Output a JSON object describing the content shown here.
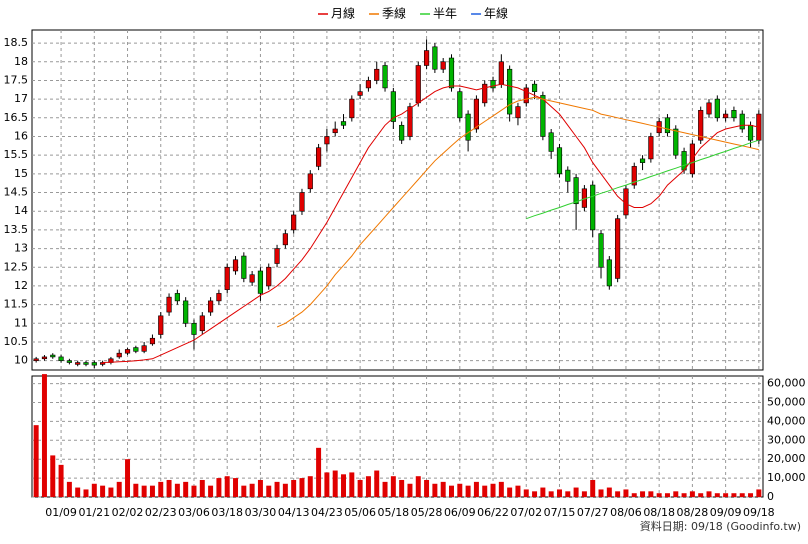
{
  "chart_data": {
    "type": "candlestick",
    "categories": [
      null,
      null,
      null,
      "01/09",
      null,
      null,
      null,
      "01/21",
      null,
      null,
      null,
      "02/02",
      null,
      null,
      null,
      "02/23",
      null,
      null,
      null,
      "03/06",
      null,
      null,
      null,
      "03/18",
      null,
      null,
      null,
      "03/30",
      null,
      null,
      null,
      "04/13",
      null,
      null,
      null,
      "04/23",
      null,
      null,
      null,
      "05/06",
      null,
      null,
      null,
      "05/18",
      null,
      null,
      null,
      "05/28",
      null,
      null,
      null,
      "06/09",
      null,
      null,
      null,
      "06/22",
      null,
      null,
      null,
      "07/02",
      null,
      null,
      null,
      "07/15",
      null,
      null,
      null,
      "07/27",
      null,
      null,
      null,
      "08/06",
      null,
      null,
      null,
      "08/18",
      null,
      null,
      null,
      "08/28",
      null,
      null,
      null,
      "09/09",
      null,
      null,
      null,
      "09/18"
    ],
    "open": [
      10.0,
      10.05,
      10.15,
      10.1,
      10.0,
      9.9,
      9.95,
      9.95,
      9.9,
      9.95,
      10.1,
      10.2,
      10.35,
      10.25,
      10.45,
      10.7,
      11.3,
      11.8,
      11.6,
      11.0,
      10.8,
      11.3,
      11.6,
      11.9,
      12.4,
      12.8,
      12.1,
      12.4,
      12.0,
      12.6,
      13.1,
      13.5,
      14.0,
      14.6,
      15.2,
      15.8,
      16.1,
      16.4,
      16.5,
      17.1,
      17.3,
      17.5,
      17.9,
      17.2,
      16.3,
      16.0,
      16.9,
      17.9,
      18.4,
      17.8,
      18.1,
      17.2,
      16.6,
      16.2,
      16.9,
      17.5,
      17.4,
      17.8,
      16.5,
      16.9,
      17.4,
      17.1,
      16.1,
      15.7,
      15.1,
      14.9,
      14.1,
      14.7,
      13.4,
      12.7,
      12.2,
      13.9,
      14.7,
      15.4,
      15.4,
      16.1,
      16.5,
      16.2,
      15.6,
      15.0,
      15.9,
      16.6,
      17.0,
      16.5,
      16.7,
      16.6,
      16.3,
      15.9
    ],
    "high": [
      10.1,
      10.15,
      10.2,
      10.15,
      10.05,
      10.0,
      10.0,
      10.0,
      10.0,
      10.1,
      10.3,
      10.35,
      10.4,
      10.5,
      10.7,
      11.3,
      11.8,
      11.9,
      11.7,
      11.1,
      11.3,
      11.7,
      11.9,
      12.6,
      12.8,
      12.9,
      12.4,
      12.5,
      12.6,
      13.1,
      13.5,
      14.0,
      14.6,
      15.1,
      15.8,
      16.2,
      16.4,
      16.6,
      17.1,
      17.4,
      17.6,
      18.0,
      18.0,
      17.3,
      16.4,
      16.9,
      18.0,
      18.6,
      18.5,
      18.1,
      18.2,
      17.3,
      16.7,
      17.1,
      17.5,
      17.6,
      18.2,
      17.9,
      16.9,
      17.4,
      17.5,
      17.2,
      16.2,
      15.8,
      15.2,
      15.0,
      14.7,
      14.8,
      13.5,
      12.8,
      13.9,
      14.7,
      15.3,
      15.5,
      16.1,
      16.5,
      16.6,
      16.3,
      15.7,
      15.9,
      16.8,
      17.0,
      17.1,
      16.7,
      16.8,
      16.7,
      16.4,
      16.7
    ],
    "low": [
      9.95,
      10.0,
      10.05,
      9.95,
      9.9,
      9.85,
      9.85,
      9.8,
      9.85,
      9.9,
      10.05,
      10.15,
      10.2,
      10.2,
      10.4,
      10.6,
      11.2,
      11.5,
      10.9,
      10.3,
      10.7,
      11.2,
      11.5,
      11.8,
      12.3,
      12.1,
      12.0,
      11.6,
      11.9,
      12.5,
      13.0,
      13.4,
      13.9,
      14.5,
      15.1,
      15.6,
      16.0,
      16.2,
      16.4,
      17.0,
      17.2,
      17.4,
      17.2,
      16.2,
      15.8,
      15.9,
      16.8,
      17.8,
      17.7,
      17.7,
      17.2,
      16.4,
      15.6,
      16.1,
      16.8,
      17.2,
      17.3,
      16.4,
      16.3,
      16.8,
      17.0,
      15.9,
      15.4,
      14.9,
      14.5,
      13.5,
      14.0,
      13.3,
      12.2,
      11.9,
      12.1,
      13.8,
      14.6,
      15.1,
      15.3,
      16.0,
      16.0,
      15.4,
      15.0,
      14.9,
      15.8,
      16.5,
      16.4,
      16.4,
      16.4,
      16.1,
      15.7,
      15.8
    ],
    "close": [
      10.05,
      10.1,
      10.1,
      10.0,
      9.95,
      9.95,
      9.9,
      9.88,
      9.95,
      10.05,
      10.2,
      10.3,
      10.25,
      10.4,
      10.6,
      11.2,
      11.7,
      11.6,
      11.0,
      10.7,
      11.2,
      11.6,
      11.8,
      12.5,
      12.7,
      12.2,
      12.3,
      11.8,
      12.5,
      13.0,
      13.4,
      13.9,
      14.5,
      15.0,
      15.7,
      16.0,
      16.2,
      16.3,
      17.0,
      17.2,
      17.5,
      17.8,
      17.3,
      16.4,
      15.9,
      16.8,
      17.9,
      18.3,
      17.8,
      18.0,
      17.3,
      16.5,
      15.9,
      17.0,
      17.4,
      17.3,
      18.0,
      16.6,
      16.8,
      17.3,
      17.2,
      16.0,
      15.6,
      15.0,
      14.8,
      14.2,
      14.6,
      13.5,
      12.5,
      12.0,
      13.8,
      14.6,
      15.2,
      15.3,
      16.0,
      16.4,
      16.1,
      15.5,
      15.1,
      15.8,
      16.7,
      16.9,
      16.5,
      16.6,
      16.5,
      16.2,
      15.9,
      16.6
    ],
    "up_color": "#e00000",
    "down_color": "#00b400",
    "ylim": [
      9.75,
      18.85
    ],
    "yticks": [
      10,
      10.5,
      11,
      11.5,
      12,
      12.5,
      13,
      13.5,
      14,
      14.5,
      15,
      15.5,
      16,
      16.5,
      17,
      17.5,
      18,
      18.5
    ],
    "grid": true,
    "ma_series": [
      {
        "name": "月線",
        "color": "#e00000",
        "values": [
          null,
          null,
          null,
          null,
          null,
          null,
          null,
          null,
          9.95,
          9.96,
          9.97,
          9.98,
          10.0,
          10.02,
          10.05,
          10.15,
          10.25,
          10.35,
          10.45,
          10.55,
          10.7,
          10.85,
          11.0,
          11.15,
          11.3,
          11.45,
          11.6,
          11.75,
          11.85,
          12.0,
          12.2,
          12.45,
          12.7,
          13.0,
          13.35,
          13.7,
          14.1,
          14.5,
          14.9,
          15.3,
          15.7,
          16.0,
          16.3,
          16.5,
          16.6,
          16.75,
          16.9,
          17.05,
          17.2,
          17.3,
          17.35,
          17.35,
          17.3,
          17.25,
          17.3,
          17.35,
          17.4,
          17.35,
          17.3,
          17.2,
          17.1,
          17.0,
          16.8,
          16.6,
          16.3,
          16.0,
          15.7,
          15.3,
          15.0,
          14.7,
          14.4,
          14.2,
          14.1,
          14.1,
          14.2,
          14.4,
          14.7,
          14.9,
          15.1,
          15.4,
          15.7,
          15.9,
          16.1,
          16.2,
          16.25,
          16.3,
          16.3,
          16.25
        ]
      },
      {
        "name": "季線",
        "color": "#f07800",
        "values": [
          null,
          null,
          null,
          null,
          null,
          null,
          null,
          null,
          null,
          null,
          null,
          null,
          null,
          null,
          null,
          null,
          null,
          null,
          null,
          null,
          null,
          null,
          null,
          null,
          null,
          null,
          null,
          null,
          null,
          10.9,
          11.0,
          11.15,
          11.3,
          11.5,
          11.75,
          12.0,
          12.3,
          12.55,
          12.8,
          13.1,
          13.35,
          13.6,
          13.85,
          14.1,
          14.35,
          14.6,
          14.85,
          15.1,
          15.35,
          15.55,
          15.75,
          15.95,
          16.1,
          16.25,
          16.4,
          16.55,
          16.7,
          16.85,
          16.95,
          17.0,
          17.05,
          17.0,
          16.95,
          16.9,
          16.85,
          16.8,
          16.75,
          16.7,
          16.6,
          16.55,
          16.5,
          16.45,
          16.4,
          16.35,
          16.3,
          16.25,
          16.2,
          16.15,
          16.1,
          16.05,
          16.0,
          15.95,
          15.9,
          15.85,
          15.8,
          15.75,
          15.7,
          15.65
        ]
      },
      {
        "name": "半年",
        "color": "#30d030",
        "values": [
          null,
          null,
          null,
          null,
          null,
          null,
          null,
          null,
          null,
          null,
          null,
          null,
          null,
          null,
          null,
          null,
          null,
          null,
          null,
          null,
          null,
          null,
          null,
          null,
          null,
          null,
          null,
          null,
          null,
          null,
          null,
          null,
          null,
          null,
          null,
          null,
          null,
          null,
          null,
          null,
          null,
          null,
          null,
          null,
          null,
          null,
          null,
          null,
          null,
          null,
          null,
          null,
          null,
          null,
          null,
          null,
          null,
          null,
          null,
          13.8,
          13.88,
          13.95,
          14.03,
          14.1,
          14.18,
          14.25,
          14.33,
          14.4,
          14.48,
          14.55,
          14.63,
          14.7,
          14.78,
          14.85,
          14.93,
          15.0,
          15.08,
          15.15,
          15.23,
          15.3,
          15.38,
          15.45,
          15.53,
          15.6,
          15.68,
          15.75,
          15.83,
          15.9
        ]
      },
      {
        "name": "年線",
        "color": "#2060e0",
        "values": [
          null,
          null,
          null,
          null,
          null,
          null,
          null,
          null,
          null,
          null,
          null,
          null,
          null,
          null,
          null,
          null,
          null,
          null,
          null,
          null,
          null,
          null,
          null,
          null,
          null,
          null,
          null,
          null,
          null,
          null,
          null,
          null,
          null,
          null,
          null,
          null,
          null,
          null,
          null,
          null,
          null,
          null,
          null,
          null,
          null,
          null,
          null,
          null,
          null,
          null,
          null,
          null,
          null,
          null,
          null,
          null,
          null,
          null,
          null,
          null,
          null,
          null,
          null,
          null,
          null,
          null,
          null,
          null,
          null,
          null,
          null,
          null,
          null,
          null,
          null,
          null,
          null,
          null,
          null,
          null,
          null,
          null,
          null,
          null,
          null,
          null,
          null,
          null
        ]
      }
    ],
    "volume": {
      "color": "#e00000",
      "values": [
        38000,
        65000,
        22000,
        17000,
        8000,
        5000,
        4000,
        7000,
        6000,
        5000,
        8000,
        20000,
        7000,
        6000,
        6000,
        8000,
        9000,
        7000,
        8000,
        6000,
        9000,
        6000,
        10000,
        11000,
        10000,
        6000,
        7000,
        9000,
        6000,
        8000,
        7000,
        9000,
        10000,
        11000,
        26000,
        13000,
        14000,
        12000,
        13000,
        9000,
        11000,
        14000,
        8000,
        11000,
        9000,
        7000,
        11000,
        9000,
        7000,
        8000,
        6000,
        7000,
        6000,
        8000,
        6000,
        7000,
        8000,
        5000,
        6000,
        4000,
        3000,
        5000,
        3000,
        4000,
        3000,
        5000,
        3000,
        9000,
        4000,
        5000,
        3000,
        4000,
        2000,
        3000,
        3000,
        2000,
        2000,
        3000,
        2000,
        3000,
        2000,
        3000,
        2000,
        2000,
        2000,
        2000,
        2000,
        4000
      ],
      "ylim": [
        0,
        64000
      ],
      "yticks": [
        0,
        {
          "value": 10000,
          "label": "10,000"
        },
        {
          "value": 20000,
          "label": "20,000"
        },
        {
          "value": 30000,
          "label": "30,000"
        },
        {
          "value": 40000,
          "label": "40,000"
        },
        {
          "value": 50000,
          "label": "50,000"
        },
        {
          "value": 60000,
          "label": "60,000"
        }
      ]
    },
    "footer": "資料日期: 09/18  (Goodinfo.tw)"
  }
}
